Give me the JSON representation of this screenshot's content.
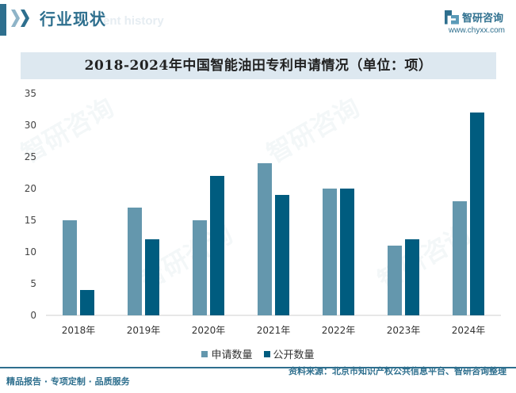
{
  "header": {
    "title": "行业现状",
    "ghost_text": "ent history"
  },
  "brand": {
    "name": "智研咨询",
    "url": "www.chyxx.com",
    "logo_icon": "brand-logo-icon"
  },
  "colors": {
    "accent": "#2e6f8e",
    "series_apply": "#6497ad",
    "series_public": "#005c7f",
    "title_band": "#dde8f0"
  },
  "watermark": {
    "text": "智研咨询"
  },
  "chart_data": {
    "type": "bar",
    "title": "2018-2024年中国智能油田专利申请情况（单位：项）",
    "categories": [
      "2018年",
      "2019年",
      "2020年",
      "2021年",
      "2022年",
      "2023年",
      "2024年"
    ],
    "series": [
      {
        "name": "申请数量",
        "values": [
          15,
          17,
          15,
          24,
          20,
          11,
          18
        ]
      },
      {
        "name": "公开数量",
        "values": [
          4,
          12,
          22,
          19,
          20,
          12,
          32
        ]
      }
    ],
    "yticks": [
      "0",
      "5",
      "10",
      "15",
      "20",
      "25",
      "30",
      "35"
    ],
    "ylim": [
      0,
      35
    ],
    "grid": false,
    "legend": "bottom-center"
  },
  "footer": {
    "left": "精品报告 · 专项定制 · 品质服务",
    "source": "资料来源：北京市知识产权公共信息平台、智研咨询整理"
  }
}
